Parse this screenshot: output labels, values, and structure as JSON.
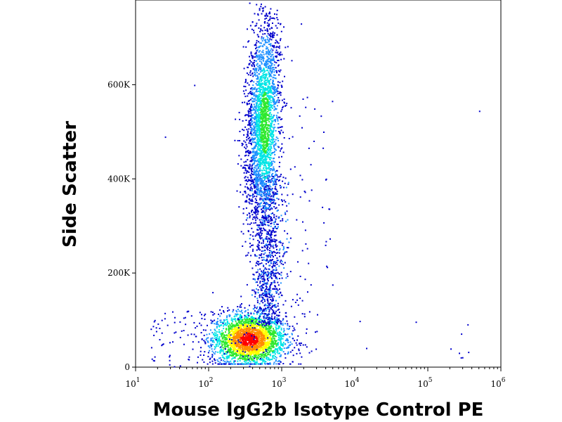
{
  "chart_data": {
    "type": "scatter",
    "title": "",
    "xlabel": "Mouse IgG2b Isotype Control PE",
    "ylabel": "Side Scatter",
    "x_scale": "log",
    "xlim": [
      10,
      1000000
    ],
    "ylim": [
      0,
      780000
    ],
    "x_ticks": [
      {
        "base": "10",
        "exp": "1",
        "value": 10
      },
      {
        "base": "10",
        "exp": "2",
        "value": 100
      },
      {
        "base": "10",
        "exp": "3",
        "value": 1000
      },
      {
        "base": "10",
        "exp": "4",
        "value": 10000
      },
      {
        "base": "10",
        "exp": "5",
        "value": 100000
      },
      {
        "base": "10",
        "exp": "6",
        "value": 1000000
      }
    ],
    "y_ticks": [
      {
        "label": "0",
        "value": 0
      },
      {
        "label": "200K",
        "value": 200000
      },
      {
        "label": "400K",
        "value": 400000
      },
      {
        "label": "600K",
        "value": 600000
      }
    ],
    "grid": false,
    "legend": "none",
    "density_colormap": [
      "#0000cc",
      "#1e90ff",
      "#00e5e5",
      "#2ee82e",
      "#ffff00",
      "#ff8c00",
      "#ff0000"
    ],
    "populations": [
      {
        "x": 350,
        "y": 60000,
        "density": "highest"
      },
      {
        "x": 550,
        "y": 520000,
        "density": "high"
      },
      {
        "x": 650,
        "y": 250000,
        "density": "low"
      }
    ]
  }
}
